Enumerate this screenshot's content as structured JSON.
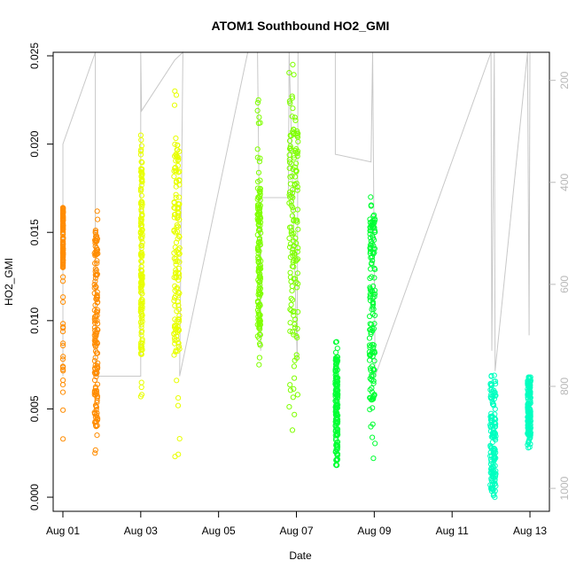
{
  "chart_data": {
    "type": "scatter",
    "title": "ATOM1 Southbound HO2_GMI",
    "xlabel": "Date",
    "ylabel": "HO2_GMI",
    "x_is_date": true,
    "xlim": [
      "2016-07-31T18:00",
      "2016-08-13T12:00"
    ],
    "ylim": [
      -0.0008,
      0.0252
    ],
    "y_ticks": [
      0.0,
      0.005,
      0.01,
      0.015,
      0.02,
      0.025
    ],
    "y_tick_labels": [
      "0.000",
      "0.005",
      "0.010",
      "0.015",
      "0.020",
      "0.025"
    ],
    "x_ticks": [
      "2016-08-01",
      "2016-08-03",
      "2016-08-05",
      "2016-08-07",
      "2016-08-09",
      "2016-08-11",
      "2016-08-13"
    ],
    "x_tick_labels": [
      "Aug 01",
      "Aug 03",
      "Aug 05",
      "Aug 07",
      "Aug 09",
      "Aug 11",
      "Aug 13"
    ],
    "right_axis": {
      "label": "",
      "ylim": [
        1045,
        145
      ],
      "ticks": [
        200,
        400,
        600,
        800,
        1000
      ],
      "tick_labels": [
        "200",
        "400",
        "600",
        "800",
        "1000"
      ],
      "color": "#bbbbbb"
    },
    "grid": false,
    "legend": "none",
    "marker": "open-circle",
    "series": [
      {
        "color": "#ff8c00",
        "clusters": [
          {
            "t": "2016-08-01T00:00",
            "t_end": "2016-08-01T00:06",
            "min": 0.0033,
            "max": 0.0164,
            "dense": [
              0.013,
              0.0164
            ]
          },
          {
            "t": "2016-08-01T19:30",
            "t_end": "2016-08-01T21:30",
            "min": 0.0025,
            "max": 0.0162,
            "dense": [
              0.004,
              0.015
            ]
          }
        ]
      },
      {
        "color": "#e8ff00",
        "clusters": [
          {
            "t": "2016-08-03T00:00",
            "t_end": "2016-08-03T01:00",
            "min": 0.0057,
            "max": 0.0205,
            "dense": [
              0.008,
              0.019
            ]
          },
          {
            "t": "2016-08-03T20:30",
            "t_end": "2016-08-04T00:00",
            "min": 0.0023,
            "max": 0.023,
            "dense": [
              0.008,
              0.02
            ]
          }
        ]
      },
      {
        "color": "#7fff00",
        "clusters": [
          {
            "t": "2016-08-06T00:00",
            "t_end": "2016-08-06T02:00",
            "min": 0.0075,
            "max": 0.0225,
            "dense": [
              0.009,
              0.0175
            ]
          },
          {
            "t": "2016-08-06T19:30",
            "t_end": "2016-08-07T01:00",
            "min": 0.0038,
            "max": 0.0245,
            "dense": [
              0.009,
              0.021
            ]
          }
        ]
      },
      {
        "color": "#00ff33",
        "clusters": [
          {
            "t": "2016-08-08T00:00",
            "t_end": "2016-08-08T01:30",
            "min": 0.0018,
            "max": 0.0088,
            "dense": [
              0.002,
              0.008
            ]
          },
          {
            "t": "2016-08-08T21:00",
            "t_end": "2016-08-09T00:30",
            "min": 0.0022,
            "max": 0.017,
            "dense": [
              0.005,
              0.016
            ]
          }
        ]
      },
      {
        "color": "#00ffc0",
        "clusters": [
          {
            "t": "2016-08-11T23:30",
            "t_end": "2016-08-12T03:00",
            "min": 0.0,
            "max": 0.0069,
            "dense": [
              0.0003,
              0.0065
            ]
          },
          {
            "t": "2016-08-12T22:30",
            "t_end": "2016-08-13T00:30",
            "min": 0.0028,
            "max": 0.0068,
            "dense": [
              0.0035,
              0.0068
            ]
          }
        ]
      }
    ],
    "pressure_trace": {
      "color": "#c8c8c8",
      "points": [
        [
          "2016-08-01T00:00",
          780
        ],
        [
          "2016-08-01T00:00",
          325
        ],
        [
          "2016-08-01T20:00",
          145
        ],
        [
          "2016-08-01T20:00",
          780
        ],
        [
          "2016-08-03T00:00",
          780
        ],
        [
          "2016-08-03T00:00",
          145
        ],
        [
          "2016-08-03T00:30",
          260
        ],
        [
          "2016-08-03T21:00",
          160
        ],
        [
          "2016-08-04T02:00",
          145
        ],
        [
          "2016-08-04T00:00",
          780
        ],
        [
          "2016-08-05T18:00",
          145
        ],
        [
          "2016-08-06T00:00",
          145
        ],
        [
          "2016-08-06T02:00",
          730
        ],
        [
          "2016-08-06T02:00",
          430
        ],
        [
          "2016-08-06T19:00",
          430
        ],
        [
          "2016-08-06T19:30",
          145
        ],
        [
          "2016-08-07T00:30",
          750
        ],
        [
          "2016-08-07T01:00",
          145
        ],
        [
          "2016-08-08T00:00",
          145
        ],
        [
          "2016-08-08T00:00",
          345
        ],
        [
          "2016-08-08T22:00",
          360
        ],
        [
          "2016-08-08T23:00",
          145
        ],
        [
          "2016-08-09T00:30",
          780
        ],
        [
          "2016-08-12T00:00",
          145
        ],
        [
          "2016-08-12T00:30",
          730
        ],
        [
          "2016-08-12T02:00",
          145
        ],
        [
          "2016-08-12T02:30",
          770
        ],
        [
          "2016-08-12T22:30",
          145
        ],
        [
          "2016-08-12T23:30",
          700
        ],
        [
          "2016-08-13T00:00",
          145
        ]
      ]
    }
  }
}
